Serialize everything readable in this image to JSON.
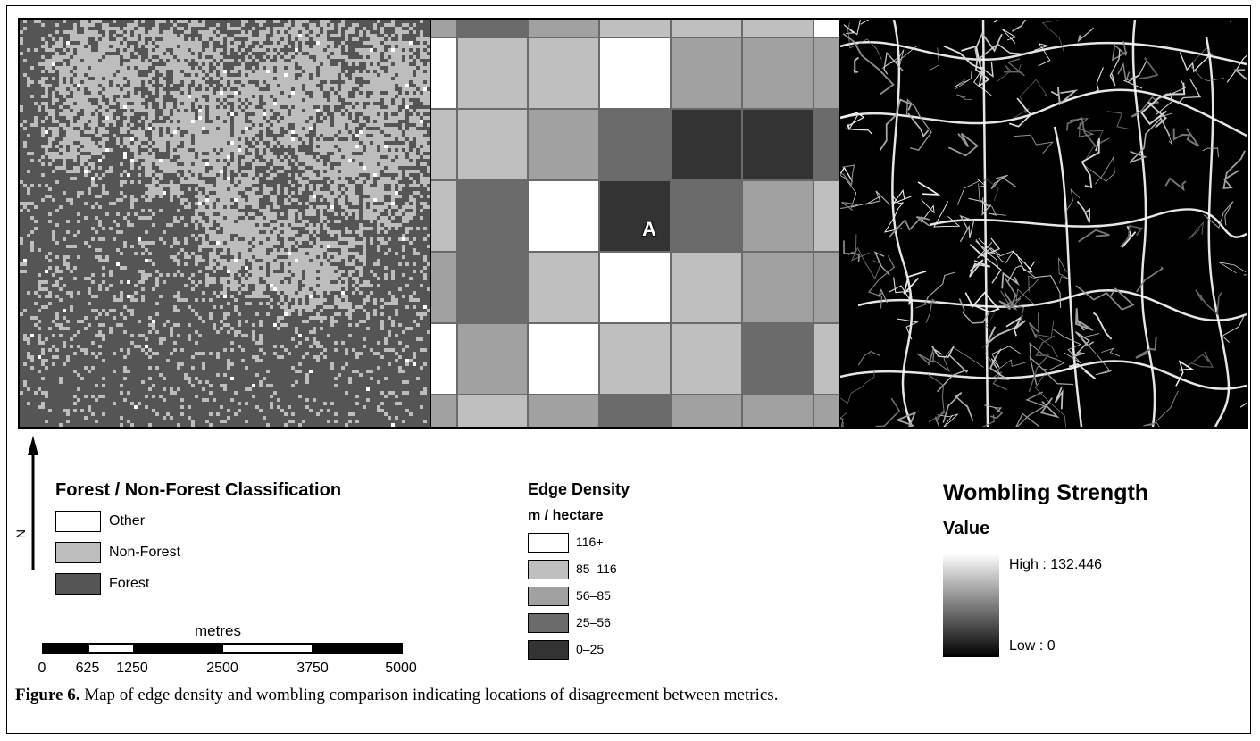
{
  "classification_legend": {
    "title": "Forest / Non-Forest Classification",
    "items": [
      {
        "label": "Other",
        "color": "#ffffff"
      },
      {
        "label": "Non-Forest",
        "color": "#bdbdbd"
      },
      {
        "label": "Forest",
        "color": "#555555"
      }
    ]
  },
  "north_arrow": {
    "letter": "N"
  },
  "scale_bar": {
    "unit": "metres",
    "ticks": [
      "0",
      "625",
      "1250",
      "2500",
      "3750",
      "5000"
    ]
  },
  "edge_density_legend": {
    "title": "Edge Density",
    "subtitle": "m / hectare",
    "classes": [
      {
        "label": "116+",
        "color": "#ffffff"
      },
      {
        "label": "85–116",
        "color": "#bfbfbf"
      },
      {
        "label": "56–85",
        "color": "#a1a1a1"
      },
      {
        "label": "25–56",
        "color": "#6b6b6b"
      },
      {
        "label": "0–25",
        "color": "#333333"
      }
    ]
  },
  "edge_density_grid": {
    "marker_label": "A",
    "rows": [
      [
        2,
        3,
        2,
        1,
        1,
        1,
        0
      ],
      [
        0,
        1,
        1,
        0,
        2,
        2,
        2
      ],
      [
        1,
        1,
        2,
        3,
        4,
        4,
        3
      ],
      [
        1,
        3,
        0,
        4,
        3,
        2,
        1
      ],
      [
        2,
        3,
        1,
        0,
        1,
        2,
        2
      ],
      [
        0,
        2,
        0,
        1,
        1,
        3,
        1
      ],
      [
        2,
        1,
        2,
        3,
        2,
        2,
        2
      ]
    ]
  },
  "wombling_legend": {
    "title": "Wombling Strength",
    "subtitle": "Value",
    "high_label": "High : 132.446",
    "low_label": "Low : 0"
  },
  "caption": {
    "label": "Figure 6.",
    "text": " Map of edge density and wombling comparison indicating locations of disagreement between metrics."
  }
}
